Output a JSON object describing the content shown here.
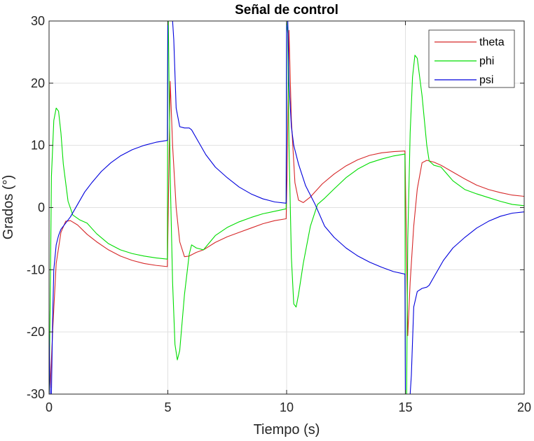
{
  "chart_data": {
    "type": "line",
    "title": "Señal de control",
    "xlabel": "Tiempo (s)",
    "ylabel": "Grados (°)",
    "xlim": [
      0,
      20
    ],
    "ylim": [
      -30,
      30
    ],
    "xticks": [
      0,
      5,
      10,
      15,
      20
    ],
    "yticks": [
      -30,
      -20,
      -10,
      0,
      10,
      20,
      30
    ],
    "xtick_labels": [
      "0",
      "5",
      "10",
      "15",
      "20"
    ],
    "ytick_labels": [
      "-30",
      "-20",
      "-10",
      "0",
      "10",
      "20",
      "30"
    ],
    "grid": true,
    "legend_position": "top-right",
    "series": [
      {
        "name": "theta",
        "color": "#d62728",
        "x": [
          0,
          0.05,
          0.15,
          0.3,
          0.5,
          0.7,
          0.9,
          1.2,
          1.6,
          2.0,
          2.5,
          3.0,
          3.5,
          4.0,
          4.5,
          4.98,
          5.02,
          5.1,
          5.2,
          5.35,
          5.5,
          5.7,
          5.9,
          6.2,
          6.5,
          7.0,
          7.5,
          8.0,
          8.5,
          9.0,
          9.5,
          9.98,
          10.02,
          10.1,
          10.2,
          10.35,
          10.5,
          10.7,
          11.0,
          11.5,
          12.0,
          12.5,
          13.0,
          13.5,
          14.0,
          14.5,
          14.98,
          15.02,
          15.1,
          15.2,
          15.35,
          15.5,
          15.7,
          15.9,
          16.2,
          16.5,
          17.0,
          17.5,
          18.0,
          18.5,
          19.0,
          19.5,
          20.0
        ],
        "y": [
          -26,
          -29,
          -20,
          -9,
          -4,
          -2.2,
          -2.1,
          -2.8,
          -4.3,
          -5.5,
          -6.8,
          -7.8,
          -8.5,
          -9.0,
          -9.3,
          -9.5,
          0,
          20.3,
          10,
          0,
          -5.5,
          -7.9,
          -7.8,
          -7.2,
          -6.8,
          -5.6,
          -4.7,
          -4.0,
          -3.3,
          -2.6,
          -2.1,
          -1.8,
          5,
          28.5,
          14,
          4,
          1.2,
          0.8,
          1.7,
          3.8,
          5.4,
          6.7,
          7.7,
          8.4,
          8.8,
          9.0,
          9.1,
          0,
          -20.6,
          -12,
          -3,
          3,
          7.2,
          7.6,
          7.3,
          6.8,
          5.7,
          4.6,
          3.6,
          2.9,
          2.4,
          2.0,
          1.8
        ]
      },
      {
        "name": "phi",
        "color": "#00dd00",
        "x": [
          0,
          0.05,
          0.1,
          0.2,
          0.3,
          0.4,
          0.5,
          0.6,
          0.8,
          1.0,
          1.3,
          1.6,
          2.0,
          2.5,
          3.0,
          3.5,
          4.0,
          4.5,
          4.98,
          5.0,
          5.02,
          5.1,
          5.2,
          5.3,
          5.4,
          5.5,
          5.7,
          5.9,
          6.0,
          6.2,
          6.5,
          7.0,
          7.5,
          8.0,
          8.5,
          9.0,
          9.5,
          9.98,
          10.0,
          10.05,
          10.1,
          10.2,
          10.3,
          10.4,
          10.5,
          10.7,
          11.0,
          11.3,
          11.6,
          12.0,
          12.5,
          13.0,
          13.5,
          14.0,
          14.5,
          14.98,
          15.0,
          15.05,
          15.1,
          15.2,
          15.3,
          15.4,
          15.5,
          15.7,
          15.9,
          16.0,
          16.2,
          16.5,
          17.0,
          17.5,
          18.0,
          18.5,
          19.0,
          19.5,
          20.0
        ],
        "y": [
          -30,
          -15,
          5,
          14,
          16,
          15.5,
          12,
          7,
          1,
          -1.2,
          -2,
          -2.5,
          -4.2,
          -5.8,
          -6.8,
          -7.4,
          -7.8,
          -8.1,
          -8.3,
          30,
          30,
          5,
          -12,
          -22,
          -24.5,
          -23,
          -14,
          -7.5,
          -6,
          -6.5,
          -6.8,
          -4.5,
          -3.2,
          -2.3,
          -1.6,
          -1.0,
          -0.6,
          -0.2,
          30,
          28,
          10,
          -8,
          -15.5,
          -16,
          -14,
          -9,
          -3,
          0.5,
          1.5,
          3.0,
          4.8,
          6.2,
          7.2,
          7.8,
          8.3,
          8.6,
          -30,
          -30,
          -5,
          12,
          21,
          24.5,
          24,
          18,
          10,
          7.5,
          6.8,
          6.5,
          4.3,
          2.9,
          2.2,
          1.6,
          1.0,
          0.5,
          0.3
        ]
      },
      {
        "name": "psi",
        "color": "#0000dd",
        "x": [
          0,
          0.05,
          0.1,
          0.15,
          0.2,
          0.3,
          0.4,
          0.5,
          0.7,
          0.9,
          1.2,
          1.5,
          1.8,
          2.2,
          2.6,
          3.0,
          3.5,
          4.0,
          4.5,
          4.98,
          5.0,
          5.05,
          5.15,
          5.2,
          5.25,
          5.35,
          5.5,
          5.7,
          5.9,
          6.0,
          6.3,
          6.6,
          7.0,
          7.5,
          8.0,
          8.5,
          9.0,
          9.5,
          9.98,
          10.0,
          10.05,
          10.1,
          10.2,
          10.3,
          10.5,
          10.8,
          11.2,
          11.6,
          12.0,
          12.5,
          13.0,
          13.5,
          14.0,
          14.5,
          14.98,
          15.0,
          15.05,
          15.15,
          15.2,
          15.25,
          15.35,
          15.5,
          15.7,
          15.9,
          16.0,
          16.3,
          16.6,
          17.0,
          17.5,
          18.0,
          18.5,
          19.0,
          19.5,
          20.0
        ],
        "y": [
          -20,
          -30,
          -30,
          -18,
          -10,
          -6,
          -4.5,
          -3.5,
          -2.5,
          -1.5,
          0.5,
          2.5,
          4.0,
          5.8,
          7.2,
          8.3,
          9.3,
          10.0,
          10.5,
          10.8,
          30,
          30,
          30,
          30,
          27,
          16,
          13,
          12.8,
          12.8,
          12.5,
          10.5,
          8.5,
          6.5,
          4.8,
          3.3,
          2.2,
          1.4,
          0.9,
          0.7,
          30,
          30,
          20,
          13,
          10,
          7,
          3.5,
          0.5,
          -3.0,
          -4.8,
          -6.5,
          -7.8,
          -8.8,
          -9.6,
          -10.3,
          -10.7,
          -30,
          -30,
          -30,
          -30,
          -27,
          -16,
          -13.5,
          -13.0,
          -12.8,
          -12.5,
          -10.5,
          -8.5,
          -6.5,
          -4.8,
          -3.3,
          -2.2,
          -1.4,
          -0.9,
          -0.7
        ]
      }
    ]
  }
}
